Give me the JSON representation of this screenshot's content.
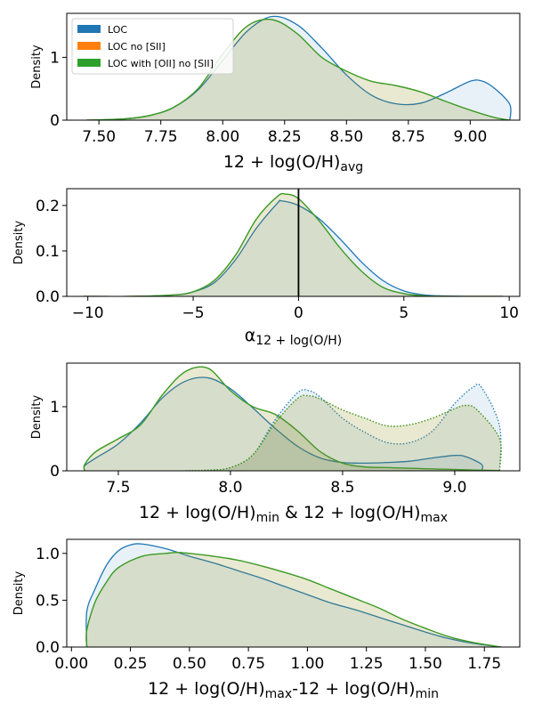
{
  "chart_data": [
    {
      "type": "area",
      "title": "",
      "xlabel": "12 + log(O/H)avg",
      "xlabel_main": "12 + log(O/H)",
      "xlabel_sub": "avg",
      "ylabel": "Density",
      "xlim": [
        7.37,
        9.2
      ],
      "ylim": [
        0,
        1.7
      ],
      "x_ticks": [
        "7.50",
        "7.75",
        "8.00",
        "8.25",
        "8.50",
        "8.75",
        "9.00"
      ],
      "y_ticks": [
        "0",
        "1"
      ],
      "legend": {
        "placement": "top-left",
        "entries": [
          {
            "label": "LOC",
            "color": "#1f77b4"
          },
          {
            "label": "LOC no [SII]",
            "color": "#ff7f0e"
          },
          {
            "label": "LOC with [OII] no [SII]",
            "color": "#2ca02c"
          }
        ]
      },
      "series": [
        {
          "name": "LOC",
          "color": "#1f77b4",
          "style": "solid",
          "fill": true,
          "x": [
            7.45,
            7.6,
            7.7,
            7.8,
            7.9,
            8.0,
            8.1,
            8.2,
            8.3,
            8.4,
            8.5,
            8.6,
            8.7,
            8.8,
            8.9,
            9.0,
            9.05,
            9.1,
            9.16,
            9.16
          ],
          "y": [
            0.0,
            0.02,
            0.07,
            0.2,
            0.48,
            0.95,
            1.42,
            1.65,
            1.52,
            1.15,
            0.72,
            0.4,
            0.26,
            0.27,
            0.43,
            0.62,
            0.62,
            0.5,
            0.25,
            0.0
          ]
        },
        {
          "name": "LOC no [SII]",
          "color": "#ff7f0e",
          "style": "solid",
          "fill": true,
          "x": [
            7.45,
            7.6,
            7.7,
            7.8,
            7.9,
            8.0,
            8.1,
            8.2,
            8.3,
            8.4,
            8.5,
            8.6,
            8.7,
            8.8,
            8.9,
            9.0,
            9.1,
            9.16
          ],
          "y": [
            0.0,
            0.02,
            0.07,
            0.2,
            0.5,
            1.05,
            1.5,
            1.6,
            1.38,
            1.0,
            0.78,
            0.62,
            0.55,
            0.45,
            0.3,
            0.16,
            0.04,
            0.0
          ]
        },
        {
          "name": "LOC with [OII] no [SII]",
          "color": "#2ca02c",
          "style": "solid",
          "fill": true,
          "x": [
            7.45,
            7.6,
            7.7,
            7.8,
            7.9,
            8.0,
            8.1,
            8.2,
            8.3,
            8.4,
            8.5,
            8.6,
            8.7,
            8.8,
            8.9,
            9.0,
            9.1,
            9.16
          ],
          "y": [
            0.0,
            0.02,
            0.07,
            0.2,
            0.5,
            1.05,
            1.5,
            1.6,
            1.38,
            1.0,
            0.78,
            0.62,
            0.55,
            0.45,
            0.3,
            0.16,
            0.04,
            0.0
          ]
        }
      ]
    },
    {
      "type": "area",
      "title": "",
      "xlabel": "α 12 + log(O/H)",
      "xlabel_main": "α",
      "xlabel_sub": "12 + log(O/H)",
      "ylabel": "Density",
      "xlim": [
        -11.0,
        10.5
      ],
      "ylim": [
        0,
        0.237
      ],
      "x_ticks": [
        "−10",
        "−5",
        "0",
        "5",
        "10"
      ],
      "x_tick_values": [
        -10,
        -5,
        0,
        5,
        10
      ],
      "y_ticks": [
        "0.0",
        "0.1",
        "0.2"
      ],
      "y_tick_values": [
        0,
        0.1,
        0.2
      ],
      "vline": 0,
      "series": [
        {
          "name": "LOC",
          "color": "#1f77b4",
          "style": "solid",
          "fill": true,
          "x": [
            -10.2,
            -8,
            -6,
            -5,
            -4,
            -3,
            -2,
            -1,
            -0.8,
            0,
            1,
            2,
            3,
            4,
            5,
            6,
            7,
            8,
            9.7
          ],
          "y": [
            0.0,
            0.0,
            0.003,
            0.01,
            0.03,
            0.08,
            0.15,
            0.205,
            0.21,
            0.2,
            0.17,
            0.125,
            0.075,
            0.035,
            0.012,
            0.003,
            0.001,
            0.0,
            0.0
          ]
        },
        {
          "name": "LOC no [SII]",
          "color": "#ff7f0e",
          "style": "solid",
          "fill": true,
          "x": [
            -10.2,
            -8,
            -6,
            -5,
            -4,
            -3,
            -2,
            -1,
            -0.6,
            0,
            1,
            2,
            3,
            4,
            5,
            6,
            7,
            8,
            9.7
          ],
          "y": [
            0.0,
            0.0,
            0.003,
            0.01,
            0.035,
            0.09,
            0.17,
            0.22,
            0.225,
            0.215,
            0.165,
            0.105,
            0.055,
            0.02,
            0.006,
            0.001,
            0.0,
            0.0,
            0.0
          ]
        },
        {
          "name": "LOC with [OII] no [SII]",
          "color": "#2ca02c",
          "style": "solid",
          "fill": true,
          "x": [
            -10.2,
            -8,
            -6,
            -5,
            -4,
            -3,
            -2,
            -1,
            -0.6,
            0,
            1,
            2,
            3,
            4,
            5,
            6,
            7,
            8,
            9.7
          ],
          "y": [
            0.0,
            0.0,
            0.003,
            0.01,
            0.035,
            0.09,
            0.17,
            0.22,
            0.225,
            0.215,
            0.165,
            0.105,
            0.055,
            0.02,
            0.006,
            0.001,
            0.0,
            0.0,
            0.0
          ]
        }
      ]
    },
    {
      "type": "area",
      "title": "",
      "xlabel": "12 + log(O/H)min & 12 + log(O/H)max",
      "xlabel_parts": [
        "12 + log(O/H)",
        "min",
        " & 12 + log(O/H)",
        "max"
      ],
      "ylabel": "Density",
      "xlim": [
        7.27,
        9.29
      ],
      "ylim": [
        0,
        1.68
      ],
      "x_ticks": [
        "7.5",
        "8.0",
        "8.5",
        "9.0"
      ],
      "x_tick_values": [
        7.5,
        8.0,
        8.5,
        9.0
      ],
      "y_ticks": [
        "0",
        "1"
      ],
      "y_tick_values": [
        0,
        1
      ],
      "series": [
        {
          "name": "LOC min",
          "color": "#1f77b4",
          "style": "solid",
          "fill": true,
          "x": [
            7.35,
            7.35,
            7.4,
            7.5,
            7.6,
            7.7,
            7.8,
            7.9,
            8.0,
            8.1,
            8.2,
            8.3,
            8.4,
            8.5,
            8.6,
            8.7,
            8.8,
            8.9,
            9.0,
            9.05,
            9.12,
            9.12
          ],
          "y": [
            0.0,
            0.08,
            0.2,
            0.42,
            0.75,
            1.15,
            1.4,
            1.45,
            1.28,
            0.98,
            0.66,
            0.38,
            0.2,
            0.13,
            0.12,
            0.13,
            0.15,
            0.2,
            0.24,
            0.22,
            0.1,
            0.0
          ]
        },
        {
          "name": "LOC no [SII] min",
          "color": "#ff7f0e",
          "style": "solid",
          "fill": true,
          "x": [
            7.35,
            7.35,
            7.4,
            7.5,
            7.6,
            7.7,
            7.8,
            7.9,
            8.0,
            8.1,
            8.2,
            8.3,
            8.4,
            8.5,
            8.6,
            8.7,
            8.8,
            8.9,
            9.0,
            9.1,
            9.19,
            9.19
          ],
          "y": [
            0.0,
            0.1,
            0.3,
            0.5,
            0.72,
            1.2,
            1.55,
            1.6,
            1.25,
            1.0,
            0.88,
            0.62,
            0.3,
            0.12,
            0.06,
            0.05,
            0.04,
            0.03,
            0.02,
            0.01,
            0.005,
            0.0
          ]
        },
        {
          "name": "LOC with [OII] no [SII] min",
          "color": "#2ca02c",
          "style": "solid",
          "fill": true,
          "x": [
            7.35,
            7.35,
            7.4,
            7.5,
            7.6,
            7.7,
            7.8,
            7.9,
            8.0,
            8.1,
            8.2,
            8.3,
            8.4,
            8.5,
            8.6,
            8.7,
            8.8,
            8.9,
            9.0,
            9.1,
            9.19,
            9.19
          ],
          "y": [
            0.0,
            0.1,
            0.3,
            0.5,
            0.72,
            1.2,
            1.55,
            1.6,
            1.25,
            1.0,
            0.88,
            0.62,
            0.3,
            0.12,
            0.06,
            0.05,
            0.04,
            0.03,
            0.02,
            0.01,
            0.005,
            0.0
          ]
        },
        {
          "name": "LOC max",
          "color": "#1f77b4",
          "style": "dotted",
          "fill": true,
          "x": [
            7.8,
            7.9,
            8.0,
            8.1,
            8.2,
            8.3,
            8.35,
            8.4,
            8.5,
            8.6,
            8.7,
            8.8,
            8.9,
            9.0,
            9.08,
            9.12,
            9.2,
            9.2
          ],
          "y": [
            0.0,
            0.01,
            0.05,
            0.25,
            0.8,
            1.22,
            1.25,
            1.15,
            0.82,
            0.6,
            0.44,
            0.44,
            0.62,
            1.05,
            1.3,
            1.3,
            0.7,
            0.0
          ]
        },
        {
          "name": "LOC no [SII] max",
          "color": "#ff7f0e",
          "style": "dotted",
          "fill": true,
          "x": [
            7.8,
            7.9,
            8.0,
            8.1,
            8.2,
            8.3,
            8.35,
            8.4,
            8.5,
            8.6,
            8.7,
            8.8,
            8.9,
            9.0,
            9.05,
            9.1,
            9.2,
            9.2
          ],
          "y": [
            0.0,
            0.01,
            0.05,
            0.25,
            0.75,
            1.13,
            1.17,
            1.12,
            0.95,
            0.82,
            0.7,
            0.72,
            0.82,
            0.97,
            1.02,
            0.95,
            0.5,
            0.0
          ]
        },
        {
          "name": "LOC with [OII] no [SII] max",
          "color": "#2ca02c",
          "style": "dotted",
          "fill": true,
          "x": [
            7.8,
            7.9,
            8.0,
            8.1,
            8.2,
            8.3,
            8.35,
            8.4,
            8.5,
            8.6,
            8.7,
            8.8,
            8.9,
            9.0,
            9.05,
            9.1,
            9.2,
            9.2
          ],
          "y": [
            0.0,
            0.01,
            0.05,
            0.25,
            0.75,
            1.13,
            1.17,
            1.12,
            0.95,
            0.82,
            0.7,
            0.72,
            0.82,
            0.97,
            1.02,
            0.95,
            0.5,
            0.0
          ]
        }
      ]
    },
    {
      "type": "area",
      "title": "",
      "xlabel": "12 + log(O/H)max-12 + log(O/H)min",
      "xlabel_parts": [
        "12 + log(O/H)",
        "max",
        "-12 + log(O/H)",
        "min"
      ],
      "ylabel": "Density",
      "xlim": [
        -0.02,
        1.9
      ],
      "ylim": [
        0,
        1.15
      ],
      "x_ticks": [
        "0.00",
        "0.25",
        "0.50",
        "0.75",
        "1.00",
        "1.25",
        "1.50",
        "1.75"
      ],
      "x_tick_values": [
        0,
        0.25,
        0.5,
        0.75,
        1.0,
        1.25,
        1.5,
        1.75
      ],
      "y_ticks": [
        "0.0",
        "0.5",
        "1.0"
      ],
      "y_tick_values": [
        0,
        0.5,
        1.0
      ],
      "series": [
        {
          "name": "LOC",
          "color": "#1f77b4",
          "style": "solid",
          "fill": true,
          "x": [
            0.065,
            0.065,
            0.1,
            0.15,
            0.2,
            0.25,
            0.3,
            0.4,
            0.5,
            0.6,
            0.7,
            0.8,
            0.9,
            1.0,
            1.1,
            1.2,
            1.3,
            1.4,
            1.5,
            1.6,
            1.7,
            1.82,
            1.82
          ],
          "y": [
            0.0,
            0.38,
            0.62,
            0.88,
            1.03,
            1.09,
            1.1,
            1.05,
            0.97,
            0.9,
            0.82,
            0.74,
            0.65,
            0.56,
            0.47,
            0.4,
            0.32,
            0.24,
            0.16,
            0.09,
            0.04,
            0.0,
            0.0
          ]
        },
        {
          "name": "LOC no [SII]",
          "color": "#ff7f0e",
          "style": "solid",
          "fill": true,
          "x": [
            0.065,
            0.065,
            0.1,
            0.15,
            0.2,
            0.3,
            0.4,
            0.45,
            0.5,
            0.6,
            0.7,
            0.8,
            0.9,
            1.0,
            1.1,
            1.2,
            1.3,
            1.4,
            1.5,
            1.6,
            1.7,
            1.82,
            1.82
          ],
          "y": [
            0.0,
            0.18,
            0.48,
            0.7,
            0.85,
            0.97,
            1.0,
            1.01,
            1.0,
            0.97,
            0.93,
            0.87,
            0.8,
            0.72,
            0.62,
            0.52,
            0.42,
            0.3,
            0.2,
            0.11,
            0.05,
            0.0,
            0.0
          ]
        },
        {
          "name": "LOC with [OII] no [SII]",
          "color": "#2ca02c",
          "style": "solid",
          "fill": true,
          "x": [
            0.065,
            0.065,
            0.1,
            0.15,
            0.2,
            0.3,
            0.4,
            0.45,
            0.5,
            0.6,
            0.7,
            0.8,
            0.9,
            1.0,
            1.1,
            1.2,
            1.3,
            1.4,
            1.5,
            1.6,
            1.7,
            1.82,
            1.82
          ],
          "y": [
            0.0,
            0.18,
            0.48,
            0.7,
            0.85,
            0.97,
            1.0,
            1.01,
            1.0,
            0.97,
            0.93,
            0.87,
            0.8,
            0.72,
            0.62,
            0.52,
            0.42,
            0.3,
            0.2,
            0.11,
            0.05,
            0.0,
            0.0
          ]
        }
      ]
    }
  ]
}
